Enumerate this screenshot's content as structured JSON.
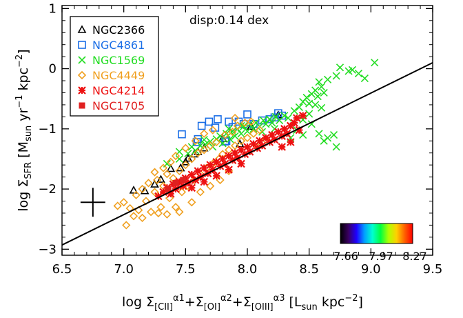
{
  "chart_data": {
    "type": "scatter",
    "title": "",
    "annotation": "disp:0.14 dex",
    "xlabel": {
      "prefix": "log Σ",
      "terms": [
        {
          "sub": "[CII]",
          "sup": "α1"
        },
        {
          "sub": "[OI]",
          "sup": "α2"
        },
        {
          "sub": "[OIII]",
          "sup": "α3"
        }
      ],
      "unit_open": "[L",
      "unit_sub": "sun",
      "unit_main": " kpc",
      "unit_sup": "−2",
      "unit_close": "]"
    },
    "ylabel": {
      "prefix": "log Σ",
      "sub": "SFR",
      "unit_open": "[M",
      "unit_sub": "sun",
      "unit_mid": " yr",
      "unit_sup1": "−1",
      "unit_mid2": " kpc",
      "unit_sup2": "−2",
      "unit_close": "]"
    },
    "xlim": [
      6.5,
      9.5
    ],
    "ylim": [
      -3.1,
      1.05
    ],
    "xticks": [
      6.5,
      7.0,
      7.5,
      8.0,
      8.5,
      9.0,
      9.5
    ],
    "xtick_labels": [
      "6.5",
      "7.0",
      "7.5",
      "8.0",
      "8.5",
      "9.0",
      "9.5"
    ],
    "yticks": [
      -3,
      -2,
      -1,
      0,
      1
    ],
    "ytick_labels": [
      "−3",
      "−2",
      "−1",
      "0",
      "1"
    ],
    "grid": false,
    "legend_position": "top-left",
    "fit_line": {
      "x": [
        6.5,
        9.5
      ],
      "y": [
        -2.93,
        0.1
      ]
    },
    "error_bar": {
      "x": 6.75,
      "y": -2.22,
      "xerr": 0.1,
      "yerr": 0.24
    },
    "colorbar": {
      "labels": [
        "7.66",
        "7.97",
        "8.27"
      ],
      "range": [
        7.66,
        8.27
      ],
      "position": "bottom-right",
      "colors": [
        "#000000",
        "#3a0060",
        "#1f00ff",
        "#00a0ff",
        "#00ffd0",
        "#00ff40",
        "#b0ff00",
        "#ffd000",
        "#ff6000",
        "#ff0000"
      ]
    },
    "series": [
      {
        "name": "NGC2366",
        "marker": "triangle",
        "color": "#000000",
        "points": [
          [
            7.08,
            -2.02
          ],
          [
            7.17,
            -2.03
          ],
          [
            7.25,
            -1.92
          ],
          [
            7.3,
            -1.84
          ],
          [
            7.38,
            -1.66
          ],
          [
            7.46,
            -1.65
          ],
          [
            7.5,
            -1.55
          ],
          [
            7.52,
            -1.49
          ],
          [
            7.57,
            -1.42
          ],
          [
            7.6,
            -1.38
          ],
          [
            7.65,
            -1.32
          ],
          [
            7.8,
            -1.16
          ],
          [
            7.94,
            -1.25
          ],
          [
            8.03,
            -0.96
          ],
          [
            8.25,
            -0.77
          ]
        ]
      },
      {
        "name": "NGC4861",
        "marker": "square",
        "color": "#1a6ee6",
        "points": [
          [
            7.47,
            -1.09
          ],
          [
            7.6,
            -1.17
          ],
          [
            7.63,
            -0.95
          ],
          [
            7.69,
            -0.88
          ],
          [
            7.74,
            -0.98
          ],
          [
            7.76,
            -0.84
          ],
          [
            7.82,
            -1.21
          ],
          [
            7.85,
            -0.88
          ],
          [
            7.88,
            -0.97
          ],
          [
            7.93,
            -0.88
          ],
          [
            7.97,
            -0.92
          ],
          [
            8.0,
            -0.76
          ],
          [
            8.05,
            -0.92
          ],
          [
            8.12,
            -0.86
          ],
          [
            8.18,
            -0.84
          ],
          [
            8.22,
            -0.81
          ],
          [
            8.25,
            -0.74
          ],
          [
            8.28,
            -0.78
          ],
          [
            7.83,
            -1.2
          ],
          [
            7.59,
            -1.22
          ]
        ]
      },
      {
        "name": "NGC1569",
        "marker": "x",
        "color": "#22dd22",
        "points": [
          [
            7.35,
            -1.58
          ],
          [
            7.45,
            -1.5
          ],
          [
            7.52,
            -1.41
          ],
          [
            7.58,
            -1.36
          ],
          [
            7.62,
            -1.28
          ],
          [
            7.66,
            -1.26
          ],
          [
            7.7,
            -1.21
          ],
          [
            7.72,
            -1.3
          ],
          [
            7.75,
            -1.17
          ],
          [
            7.78,
            -1.12
          ],
          [
            7.8,
            -1.24
          ],
          [
            7.83,
            -1.08
          ],
          [
            7.86,
            -1.17
          ],
          [
            7.88,
            -1.04
          ],
          [
            7.9,
            -1.12
          ],
          [
            7.92,
            -1.0
          ],
          [
            7.95,
            -1.08
          ],
          [
            7.97,
            -0.96
          ],
          [
            8.0,
            -1.04
          ],
          [
            8.02,
            -0.92
          ],
          [
            8.05,
            -1.0
          ],
          [
            8.07,
            -0.9
          ],
          [
            8.1,
            -0.96
          ],
          [
            8.13,
            -0.86
          ],
          [
            8.15,
            -0.92
          ],
          [
            8.18,
            -0.84
          ],
          [
            8.2,
            -0.9
          ],
          [
            8.23,
            -0.8
          ],
          [
            8.26,
            -0.86
          ],
          [
            8.3,
            -0.78
          ],
          [
            8.33,
            -0.82
          ],
          [
            8.38,
            -0.7
          ],
          [
            8.42,
            -0.64
          ],
          [
            8.45,
            -0.55
          ],
          [
            8.48,
            -0.48
          ],
          [
            8.5,
            -0.58
          ],
          [
            8.52,
            -0.42
          ],
          [
            8.55,
            -0.36
          ],
          [
            8.57,
            -0.46
          ],
          [
            8.6,
            -0.3
          ],
          [
            8.62,
            -0.4
          ],
          [
            8.58,
            -0.22
          ],
          [
            8.65,
            -0.18
          ],
          [
            8.72,
            -0.12
          ],
          [
            8.75,
            0.02
          ],
          [
            8.82,
            -0.04
          ],
          [
            8.85,
            -0.02
          ],
          [
            8.9,
            -0.08
          ],
          [
            8.95,
            -0.16
          ],
          [
            9.03,
            0.1
          ],
          [
            8.55,
            -0.6
          ],
          [
            8.6,
            -0.65
          ],
          [
            8.5,
            -0.75
          ],
          [
            8.45,
            -0.85
          ],
          [
            8.35,
            -0.95
          ],
          [
            8.52,
            -0.92
          ],
          [
            8.45,
            -1.1
          ],
          [
            8.58,
            -1.08
          ],
          [
            8.65,
            -1.15
          ],
          [
            8.7,
            -1.1
          ],
          [
            8.72,
            -1.3
          ],
          [
            8.62,
            -1.2
          ],
          [
            8.4,
            -1.02
          ],
          [
            8.35,
            -1.15
          ],
          [
            7.45,
            -1.38
          ],
          [
            7.55,
            -1.3
          ],
          [
            7.65,
            -1.18
          ],
          [
            7.85,
            -1.0
          ],
          [
            7.95,
            -0.95
          ],
          [
            8.12,
            -1.05
          ],
          [
            8.22,
            -1.0
          ]
        ]
      },
      {
        "name": "NGC4449",
        "marker": "diamond",
        "color": "#f0a020",
        "points": [
          [
            6.95,
            -2.28
          ],
          [
            7.0,
            -2.22
          ],
          [
            7.05,
            -2.32
          ],
          [
            7.08,
            -2.45
          ],
          [
            7.1,
            -2.1
          ],
          [
            7.12,
            -2.35
          ],
          [
            7.15,
            -2.0
          ],
          [
            7.18,
            -2.2
          ],
          [
            7.2,
            -1.9
          ],
          [
            7.22,
            -2.38
          ],
          [
            7.25,
            -2.05
          ],
          [
            7.27,
            -1.85
          ],
          [
            7.3,
            -2.3
          ],
          [
            7.32,
            -1.95
          ],
          [
            7.35,
            -1.75
          ],
          [
            7.37,
            -2.15
          ],
          [
            7.4,
            -1.82
          ],
          [
            7.42,
            -2.3
          ],
          [
            7.45,
            -1.7
          ],
          [
            7.47,
            -2.05
          ],
          [
            7.5,
            -1.6
          ],
          [
            7.52,
            -1.95
          ],
          [
            7.55,
            -1.5
          ],
          [
            7.57,
            -1.85
          ],
          [
            7.6,
            -1.4
          ],
          [
            7.62,
            -1.75
          ],
          [
            7.65,
            -1.35
          ],
          [
            7.67,
            -1.65
          ],
          [
            7.7,
            -1.28
          ],
          [
            7.72,
            -1.58
          ],
          [
            7.75,
            -1.22
          ],
          [
            7.77,
            -1.5
          ],
          [
            7.8,
            -1.42
          ],
          [
            7.82,
            -1.1
          ],
          [
            7.85,
            -1.35
          ],
          [
            7.88,
            -1.05
          ],
          [
            7.9,
            -1.28
          ],
          [
            7.92,
            -0.95
          ],
          [
            7.95,
            -1.2
          ],
          [
            7.98,
            -0.9
          ],
          [
            8.0,
            -1.15
          ],
          [
            8.03,
            -0.88
          ],
          [
            8.05,
            -1.08
          ],
          [
            8.08,
            -1.3
          ],
          [
            8.1,
            -1.02
          ],
          [
            8.15,
            -1.18
          ],
          [
            7.28,
            -2.4
          ],
          [
            7.35,
            -2.42
          ],
          [
            7.45,
            -2.38
          ],
          [
            7.15,
            -2.48
          ],
          [
            7.55,
            -2.22
          ],
          [
            7.62,
            -2.05
          ],
          [
            7.7,
            -1.95
          ],
          [
            7.78,
            -1.85
          ],
          [
            7.85,
            -1.7
          ],
          [
            7.58,
            -1.2
          ],
          [
            7.65,
            -1.08
          ],
          [
            7.72,
            -1.02
          ],
          [
            7.9,
            -0.82
          ],
          [
            7.32,
            -1.65
          ],
          [
            7.25,
            -1.72
          ],
          [
            7.38,
            -1.55
          ],
          [
            7.42,
            -1.45
          ],
          [
            7.5,
            -1.32
          ],
          [
            7.02,
            -2.6
          ]
        ]
      },
      {
        "name": "NGC4214",
        "marker": "asterisk",
        "color": "#ee1111",
        "points": [
          [
            7.28,
            -2.12
          ],
          [
            7.32,
            -2.05
          ],
          [
            7.35,
            -1.98
          ],
          [
            7.38,
            -2.08
          ],
          [
            7.4,
            -1.92
          ],
          [
            7.42,
            -2.0
          ],
          [
            7.45,
            -1.88
          ],
          [
            7.48,
            -1.95
          ],
          [
            7.5,
            -1.82
          ],
          [
            7.52,
            -1.9
          ],
          [
            7.55,
            -1.76
          ],
          [
            7.58,
            -1.85
          ],
          [
            7.6,
            -1.7
          ],
          [
            7.62,
            -1.8
          ],
          [
            7.65,
            -1.65
          ],
          [
            7.68,
            -1.74
          ],
          [
            7.7,
            -1.6
          ],
          [
            7.72,
            -1.68
          ],
          [
            7.75,
            -1.55
          ],
          [
            7.78,
            -1.62
          ],
          [
            7.8,
            -1.5
          ],
          [
            7.82,
            -1.58
          ],
          [
            7.85,
            -1.45
          ],
          [
            7.88,
            -1.52
          ],
          [
            7.9,
            -1.4
          ],
          [
            7.92,
            -1.48
          ],
          [
            7.95,
            -1.35
          ],
          [
            7.98,
            -1.42
          ],
          [
            8.0,
            -1.3
          ],
          [
            8.02,
            -1.38
          ],
          [
            8.05,
            -1.25
          ],
          [
            8.08,
            -1.32
          ],
          [
            8.1,
            -1.2
          ],
          [
            8.12,
            -1.28
          ],
          [
            8.15,
            -1.15
          ],
          [
            8.18,
            -1.22
          ],
          [
            8.2,
            -1.1
          ],
          [
            8.22,
            -1.18
          ],
          [
            8.25,
            -1.05
          ],
          [
            8.28,
            -1.12
          ],
          [
            8.3,
            -1.0
          ],
          [
            8.32,
            -1.08
          ],
          [
            8.35,
            -0.95
          ],
          [
            8.38,
            -0.9
          ],
          [
            8.4,
            -0.82
          ],
          [
            8.28,
            -1.3
          ],
          [
            8.35,
            -1.22
          ],
          [
            8.42,
            -1.02
          ],
          [
            8.45,
            -0.78
          ],
          [
            7.55,
            -1.98
          ],
          [
            7.65,
            -1.88
          ],
          [
            7.75,
            -1.78
          ],
          [
            7.85,
            -1.68
          ],
          [
            7.95,
            -1.58
          ]
        ]
      },
      {
        "name": "NGC1705",
        "marker": "filled-square",
        "color": "#e02020",
        "points": [
          [
            7.36,
            -2.0
          ],
          [
            7.42,
            -1.9
          ],
          [
            7.48,
            -1.85
          ]
        ]
      }
    ]
  }
}
